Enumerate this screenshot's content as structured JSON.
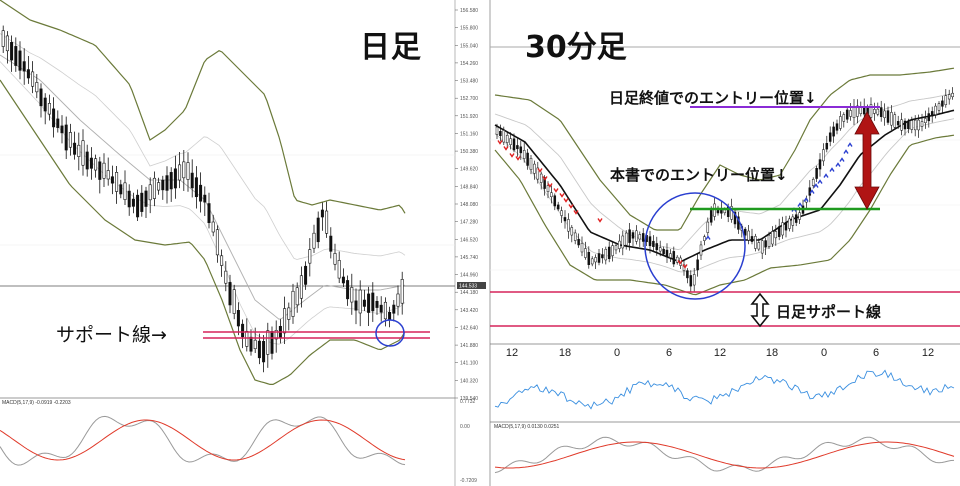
{
  "panels": {
    "left": {
      "title": "日足"
    },
    "right": {
      "title": "30分足"
    }
  },
  "annotations": {
    "support_label": "サポート線→",
    "daily_close_entry": "日足終値でのエントリー位置↓",
    "book_entry": "本書でのエントリー位置↓",
    "daily_support": "日足サポート線"
  },
  "colors": {
    "candle": "#111111",
    "bollinger": "#6b7a3a",
    "ma_light": "#b0b0b0",
    "support": "#d6245a",
    "circle": "#2a3fd0",
    "entry_green": "#1f9a1f",
    "entry_purple": "#8a2bd6",
    "arrow_red": "#b01414",
    "macd_red": "#e03a2a",
    "macd_gray": "#9a9a9a",
    "rsi_blue": "#3a8fe0"
  },
  "chart_data": [
    {
      "type": "candlestick",
      "panel": "daily",
      "yticks": [
        "156.580",
        "155.800",
        "155.040",
        "154.260",
        "153.480",
        "152.700",
        "151.920",
        "151.160",
        "150.380",
        "149.620",
        "148.840",
        "148.080",
        "147.280",
        "146.520",
        "145.740",
        "144.960",
        "144.180",
        "143.420",
        "142.640",
        "141.880",
        "141.100",
        "140.320",
        "139.540"
      ],
      "current_price": "144.533",
      "macd_label": "MACD(5,17,9) -0.0919 -0.2203",
      "macd_yticks": [
        "0.7732",
        "0.00",
        "-0.7209"
      ]
    },
    {
      "type": "candlestick",
      "panel": "30min",
      "xticks": [
        "12",
        "18",
        "0",
        "6",
        "12",
        "18",
        "0",
        "6",
        "12"
      ],
      "macd_label": "MACD(5,17,9) 0.0130 0.0251"
    }
  ]
}
